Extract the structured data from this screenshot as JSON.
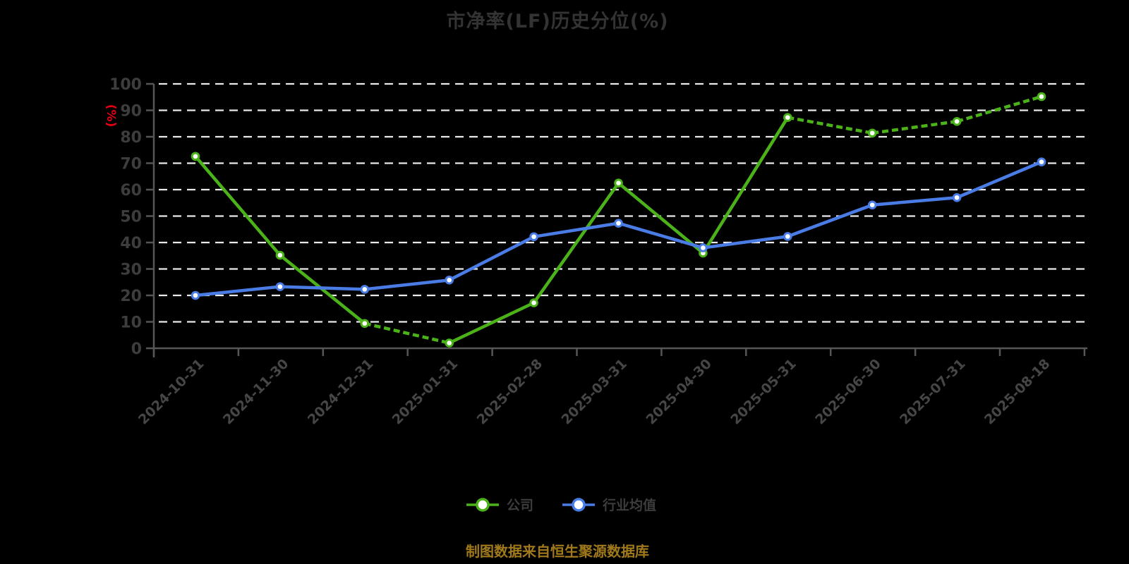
{
  "chart_data": {
    "type": "line",
    "title": "市净率(LF)历史分位(%)",
    "ylabel": "(%)",
    "source_note": "制图数据来自恒生聚源数据库",
    "categories": [
      "2024-10-31",
      "2024-11-30",
      "2024-12-31",
      "2025-01-31",
      "2025-02-28",
      "2025-03-31",
      "2025-04-30",
      "2025-05-31",
      "2025-06-30",
      "2025-07-31",
      "2025-08-18"
    ],
    "series": [
      {
        "name": "公司",
        "color": "#4bb219",
        "values": [
          72.6,
          35.2,
          9.4,
          2.0,
          17.2,
          62.5,
          36.0,
          87.3,
          81.4,
          85.8,
          95.2
        ],
        "dashed_segments": [
          [
            2,
            3
          ],
          [
            7,
            10
          ]
        ],
        "marker": "circle-white-fill"
      },
      {
        "name": "行业均值",
        "color": "#4a7ce6",
        "values": [
          20.0,
          23.3,
          22.3,
          25.8,
          42.2,
          47.3,
          38.0,
          42.3,
          54.2,
          57.0,
          70.5
        ],
        "dashed_segments": [],
        "marker": "circle-white-fill"
      }
    ],
    "ylim": [
      0,
      100
    ],
    "y_tick_step": 10,
    "xlabel": "",
    "xlabel_rotation": -45,
    "grid": "horizontal-dashed",
    "legend_position": "bottom",
    "colors": {
      "background": "#000000",
      "title": "#333333",
      "tick_label": "#3d3d3d",
      "axis": "#565656",
      "gridline": "#e9e9e9",
      "ylabel": "#e60012",
      "source_note": "#a0791b"
    }
  }
}
